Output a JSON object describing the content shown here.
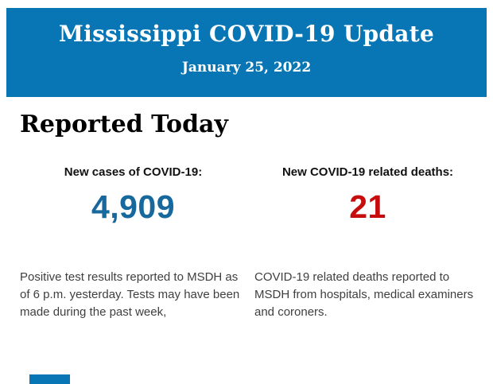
{
  "header": {
    "title": "Mississippi COVID-19 Update",
    "date": "January 25, 2022",
    "background_color": "#0876B4",
    "text_color": "#FFFFFF"
  },
  "reported_today": {
    "heading": "Reported Today",
    "stats": {
      "cases": {
        "label": "New cases of COVID-19:",
        "value": "4,909",
        "value_color": "#17689D",
        "description": "Positive test results reported to MSDH as of 6 p.m. yesterday. Tests may have been made during the past week,"
      },
      "deaths": {
        "label": "New COVID-19 related deaths:",
        "value": "21",
        "value_color": "#C60C0D",
        "description": "COVID-19 related deaths reported to MSDH from hospitals, medical examiners and coroners."
      }
    }
  },
  "next_section_fragment": {
    "color": "#0876B4"
  }
}
